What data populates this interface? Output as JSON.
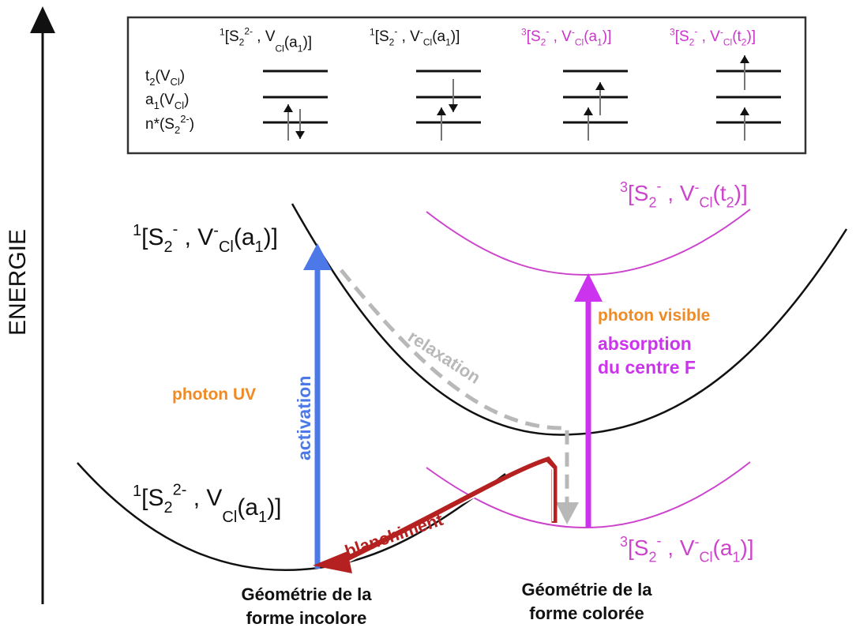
{
  "axis": {
    "label": "ENERGIE"
  },
  "inset": {
    "level_labels": {
      "t2": {
        "main": "t",
        "sub": "2",
        "post": "(V",
        "sub2": "Cl",
        "end": ")"
      },
      "a1": {
        "main": "a",
        "sub": "1",
        "post": "(V",
        "sub2": "Cl",
        "end": ")"
      },
      "n": {
        "main": "n*(S",
        "sub": "2",
        "sup": "2-",
        "end": ")"
      }
    },
    "configs": [
      {
        "mult": "1",
        "label": "[S",
        "s_sub": "2",
        "s_sup": "2-",
        "mid": " , V",
        "v_sup": "",
        "v_sub": "Cl",
        "tail": "(a",
        "t_sub": "1",
        "end": ")]",
        "color": "#111111"
      },
      {
        "mult": "1",
        "label": "[S",
        "s_sub": "2",
        "s_sup": "-",
        "mid": " , V",
        "v_sup": "-",
        "v_sub": "Cl",
        "tail": "(a",
        "t_sub": "1",
        "end": ")]",
        "color": "#111111"
      },
      {
        "mult": "3",
        "label": "[S",
        "s_sub": "2",
        "s_sup": "-",
        "mid": " , V",
        "v_sup": "-",
        "v_sub": "Cl",
        "tail": "(a",
        "t_sub": "1",
        "end": ")]",
        "color": "#cc33cc"
      },
      {
        "mult": "3",
        "label": "[S",
        "s_sub": "2",
        "s_sup": "-",
        "mid": " , V",
        "v_sup": "-",
        "v_sub": "Cl",
        "tail": "(t",
        "t_sub": "2",
        "end": ")]",
        "color": "#cc33cc"
      }
    ]
  },
  "states": {
    "ground": {
      "mult": "1",
      "label": "[S",
      "s_sub": "2",
      "s_sup": "2-",
      "mid": " , V",
      "v_sup": "",
      "v_sub": "Cl",
      "tail": "(a",
      "t_sub": "1",
      "end": ")]"
    },
    "singlet_excited": {
      "mult": "1",
      "label": "[S",
      "s_sub": "2",
      "s_sup": "-",
      "mid": " , V",
      "v_sup": "-",
      "v_sub": "Cl",
      "tail": "(a",
      "t_sub": "1",
      "end": ")]"
    },
    "triplet_t2": {
      "mult": "3",
      "label": "[S",
      "s_sub": "2",
      "s_sup": "-",
      "mid": " , V",
      "v_sup": "-",
      "v_sub": "Cl",
      "tail": "(t",
      "t_sub": "2",
      "end": ")]"
    },
    "triplet_a1": {
      "mult": "3",
      "label": "[S",
      "s_sub": "2",
      "s_sup": "-",
      "mid": " , V",
      "v_sup": "-",
      "v_sub": "Cl",
      "tail": "(a",
      "t_sub": "1",
      "end": ")]"
    }
  },
  "labels": {
    "photon_uv": "photon UV",
    "activation": "activation",
    "relaxation": "relaxation",
    "photon_visible": "photon visible",
    "absorption_1": "absorption",
    "absorption_2": "du centre F",
    "blanchiment": "blanchiment",
    "geom_incolore_1": "Géométrie de la",
    "geom_incolore_2": "forme incolore",
    "geom_coloree_1": "Géométrie de la",
    "geom_coloree_2": "forme colorée"
  },
  "colors": {
    "activation": "#4d79e8",
    "absorption": "#cc33ee",
    "photon": "#f08a24",
    "relaxation": "#b8b8b8",
    "blanchiment": "#b52020",
    "triplet": "#cc44cc",
    "curve": "#111111"
  }
}
